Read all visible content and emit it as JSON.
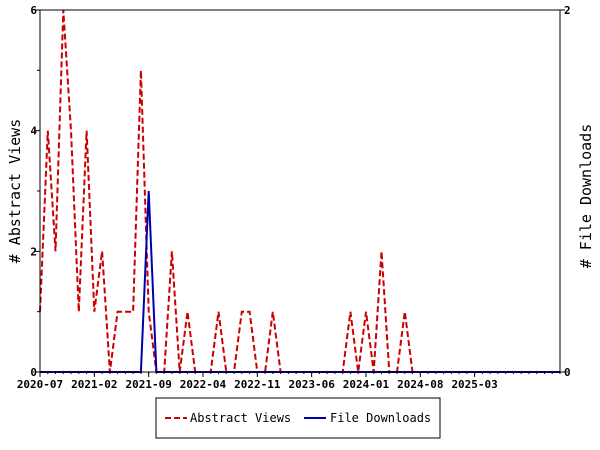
{
  "chart_data": {
    "type": "line",
    "y_left_label": "# Abstract Views",
    "y_right_label": "# File Downloads",
    "y_left_ticks": [
      "0",
      "2",
      "4",
      "6"
    ],
    "y_right_ticks": [
      "0",
      "2"
    ],
    "y_left_lim": [
      0,
      6
    ],
    "y_right_lim": [
      0,
      2
    ],
    "x_tick_labels": [
      "2020-07",
      "2021-02",
      "2021-09",
      "2022-04",
      "2022-11",
      "2023-06",
      "2024-01",
      "2024-08",
      "2025-03"
    ],
    "x_lim": [
      "2020-07",
      "2026-02"
    ],
    "grid": false,
    "legend_position": "bottom",
    "colors": {
      "abstract_views": "#cc0000",
      "file_downloads": "#0000aa"
    },
    "series": [
      {
        "name": "Abstract Views",
        "axis": "left",
        "style": "dashed",
        "points": [
          [
            "2020-07",
            1
          ],
          [
            "2020-08",
            4
          ],
          [
            "2020-09",
            2
          ],
          [
            "2020-10",
            6
          ],
          [
            "2020-11",
            4
          ],
          [
            "2020-12",
            1
          ],
          [
            "2021-01",
            4
          ],
          [
            "2021-02",
            1
          ],
          [
            "2021-03",
            2
          ],
          [
            "2021-04",
            0
          ],
          [
            "2021-05",
            1
          ],
          [
            "2021-06",
            1
          ],
          [
            "2021-07",
            1
          ],
          [
            "2021-08",
            5
          ],
          [
            "2021-09",
            1
          ],
          [
            "2021-10",
            0
          ],
          [
            "2021-11",
            0
          ],
          [
            "2021-12",
            2
          ],
          [
            "2022-01",
            0
          ],
          [
            "2022-02",
            1
          ],
          [
            "2022-03",
            0
          ],
          [
            "2022-04",
            0
          ],
          [
            "2022-05",
            0
          ],
          [
            "2022-06",
            1
          ],
          [
            "2022-07",
            0
          ],
          [
            "2022-08",
            0
          ],
          [
            "2022-09",
            1
          ],
          [
            "2022-10",
            1
          ],
          [
            "2022-11",
            0
          ],
          [
            "2022-12",
            0
          ],
          [
            "2023-01",
            1
          ],
          [
            "2023-02",
            0
          ],
          [
            "2023-03",
            0
          ],
          [
            "2023-04",
            0
          ],
          [
            "2023-05",
            0
          ],
          [
            "2023-06",
            0
          ],
          [
            "2023-07",
            0
          ],
          [
            "2023-08",
            0
          ],
          [
            "2023-09",
            0
          ],
          [
            "2023-10",
            0
          ],
          [
            "2023-11",
            1
          ],
          [
            "2023-12",
            0
          ],
          [
            "2024-01",
            1
          ],
          [
            "2024-02",
            0
          ],
          [
            "2024-03",
            2
          ],
          [
            "2024-04",
            0
          ],
          [
            "2024-05",
            0
          ],
          [
            "2024-06",
            1
          ],
          [
            "2024-07",
            0
          ],
          [
            "2024-08",
            0
          ],
          [
            "2024-09",
            0
          ],
          [
            "2024-10",
            0
          ],
          [
            "2024-11",
            0
          ],
          [
            "2024-12",
            0
          ],
          [
            "2025-01",
            0
          ],
          [
            "2025-02",
            0
          ],
          [
            "2025-03",
            0
          ],
          [
            "2025-04",
            0
          ],
          [
            "2025-05",
            0
          ],
          [
            "2025-06",
            0
          ],
          [
            "2025-07",
            0
          ],
          [
            "2025-08",
            0
          ],
          [
            "2025-09",
            0
          ],
          [
            "2025-10",
            0
          ],
          [
            "2025-11",
            0
          ],
          [
            "2025-12",
            0
          ],
          [
            "2026-01",
            0
          ],
          [
            "2026-02",
            0
          ]
        ]
      },
      {
        "name": "File Downloads",
        "axis": "right",
        "style": "solid",
        "points": [
          [
            "2020-07",
            0
          ],
          [
            "2021-07",
            0
          ],
          [
            "2021-08",
            0
          ],
          [
            "2021-09",
            1
          ],
          [
            "2021-10",
            0
          ],
          [
            "2026-02",
            0
          ]
        ]
      }
    ]
  }
}
